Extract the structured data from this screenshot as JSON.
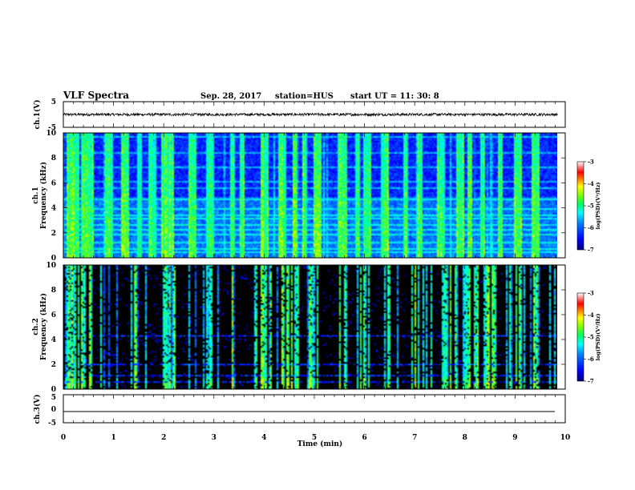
{
  "header": {
    "title": "VLF Spectra",
    "date": "Sep. 28, 2017",
    "station": "station=HUS",
    "start": "start  UT =   11: 30: 8"
  },
  "chart_data": [
    {
      "type": "line",
      "panel": "ch1-waveform",
      "ylabel": "ch.1(V)",
      "ylim": [
        -5,
        5
      ],
      "yticks": [
        "5",
        "-5"
      ],
      "xlim": [
        0,
        10
      ],
      "description_values": {
        "baseline": 0,
        "amplitude": 0.5
      }
    },
    {
      "type": "heatmap",
      "panel": "ch1-spectrogram",
      "ylabel_line1": "ch.1",
      "ylabel_line2": "Frequency (kHz)",
      "ylim": [
        0,
        10
      ],
      "yticks": [
        "0",
        "2",
        "4",
        "6",
        "8",
        "10"
      ],
      "xlim": [
        0,
        10
      ],
      "colorbar": {
        "label": "log(PSD)(V²/Hz)",
        "range": [
          -7,
          -3
        ],
        "ticks": [
          "-3",
          "-4",
          "-5",
          "-6",
          "-7"
        ]
      },
      "background_level": -6.3,
      "horizontal_bands_kHz": [
        0.5,
        0.8,
        1.3,
        1.9,
        2.3,
        2.7,
        3.2,
        3.5,
        4.0,
        4.8,
        5.6,
        6.2,
        7.3,
        8.5,
        9.7
      ],
      "vertical_bursts_min": [
        0.08,
        0.22,
        0.4,
        0.55,
        0.9,
        1.2,
        1.5,
        1.75,
        2.0,
        2.05,
        2.1,
        2.15,
        2.55,
        2.9,
        3.35,
        3.55,
        3.95,
        4.0,
        4.35,
        4.6,
        4.8,
        5.05,
        5.5,
        5.55,
        5.6,
        5.85,
        6.05,
        6.4,
        6.8,
        7.1,
        7.5,
        7.9,
        8.1,
        8.35,
        8.7,
        9.05,
        9.4
      ]
    },
    {
      "type": "heatmap",
      "panel": "ch2-spectrogram",
      "ylabel_line1": "ch.2",
      "ylabel_line2": "Frequency (kHz)",
      "ylim": [
        0,
        10
      ],
      "yticks": [
        "0",
        "2",
        "4",
        "6",
        "8",
        "10"
      ],
      "xlim": [
        0,
        10
      ],
      "colorbar": {
        "label": "log(PSD)(V²/Hz)",
        "range": [
          -7,
          -3
        ],
        "ticks": [
          "-3",
          "-4",
          "-5",
          "-6",
          "-7"
        ]
      },
      "background_level": -7,
      "horizontal_bands_kHz": [
        0.6,
        1.2,
        2.1,
        4.3
      ],
      "burst_clusters_min": [
        [
          0.05,
          0.55
        ],
        [
          0.65,
          0.75
        ],
        [
          1.3,
          1.45
        ],
        [
          1.95,
          2.2
        ],
        [
          2.85,
          2.95
        ],
        [
          3.3,
          3.4
        ],
        [
          3.75,
          4.2
        ],
        [
          4.35,
          4.7
        ],
        [
          4.8,
          5.05
        ],
        [
          5.45,
          5.7
        ],
        [
          5.85,
          6.1
        ],
        [
          6.45,
          6.55
        ],
        [
          6.95,
          7.35
        ],
        [
          7.55,
          7.7
        ],
        [
          7.8,
          8.6
        ],
        [
          8.9,
          9.2
        ],
        [
          9.35,
          9.45
        ]
      ]
    },
    {
      "type": "line",
      "panel": "ch3-waveform",
      "ylabel": "ch.3(V)",
      "ylim": [
        -5,
        5
      ],
      "yticks": [
        "5",
        "0",
        "-5"
      ],
      "xlim": [
        0,
        10
      ],
      "description_values": {
        "baseline": -1.8
      }
    }
  ],
  "x_axis": {
    "label": "Time (min)",
    "ticks": [
      "0",
      "1",
      "2",
      "3",
      "4",
      "5",
      "6",
      "7",
      "8",
      "9",
      "10"
    ]
  },
  "colors": {
    "colormap": [
      "#000080",
      "#0000ff",
      "#0080ff",
      "#00ffff",
      "#00ff80",
      "#80ff00",
      "#ffff00",
      "#ff8000",
      "#ff0000",
      "#ff8080",
      "#ffffff"
    ],
    "ch2_background": "#000000"
  }
}
